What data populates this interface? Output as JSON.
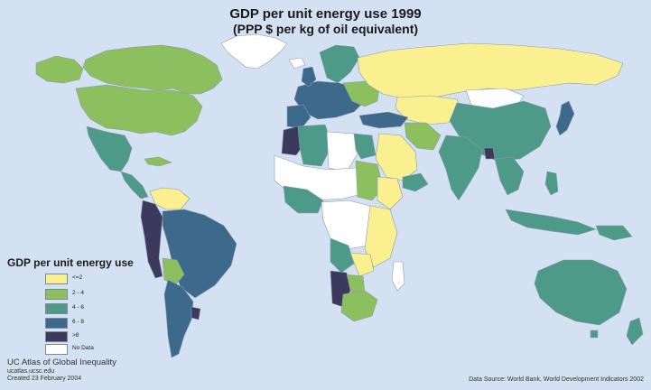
{
  "title": "GDP per unit energy use 1999",
  "subtitle": "(PPP $ per kg of oil equivalent)",
  "legend": {
    "title": "GDP per unit energy use",
    "items": [
      {
        "label": "<=2",
        "color": "#fbf08f"
      },
      {
        "label": "2 - 4",
        "color": "#8cbf5d"
      },
      {
        "label": "4 - 6",
        "color": "#4e9a88"
      },
      {
        "label": "6 - 8",
        "color": "#3d6a8a"
      },
      {
        "label": ">8",
        "color": "#3b3a5c"
      },
      {
        "label": "No Data",
        "color": "#ffffff"
      }
    ]
  },
  "credits": {
    "line1": "UC Atlas of Global Inequality",
    "line2": "ucatlas.ucsc.edu",
    "line3": "Created 23 February 2004"
  },
  "source": "Data Source: World Bank, World Development Indicators 2002",
  "colors": {
    "ocean": "#d3e1f3",
    "border": "#8a9bb0"
  }
}
